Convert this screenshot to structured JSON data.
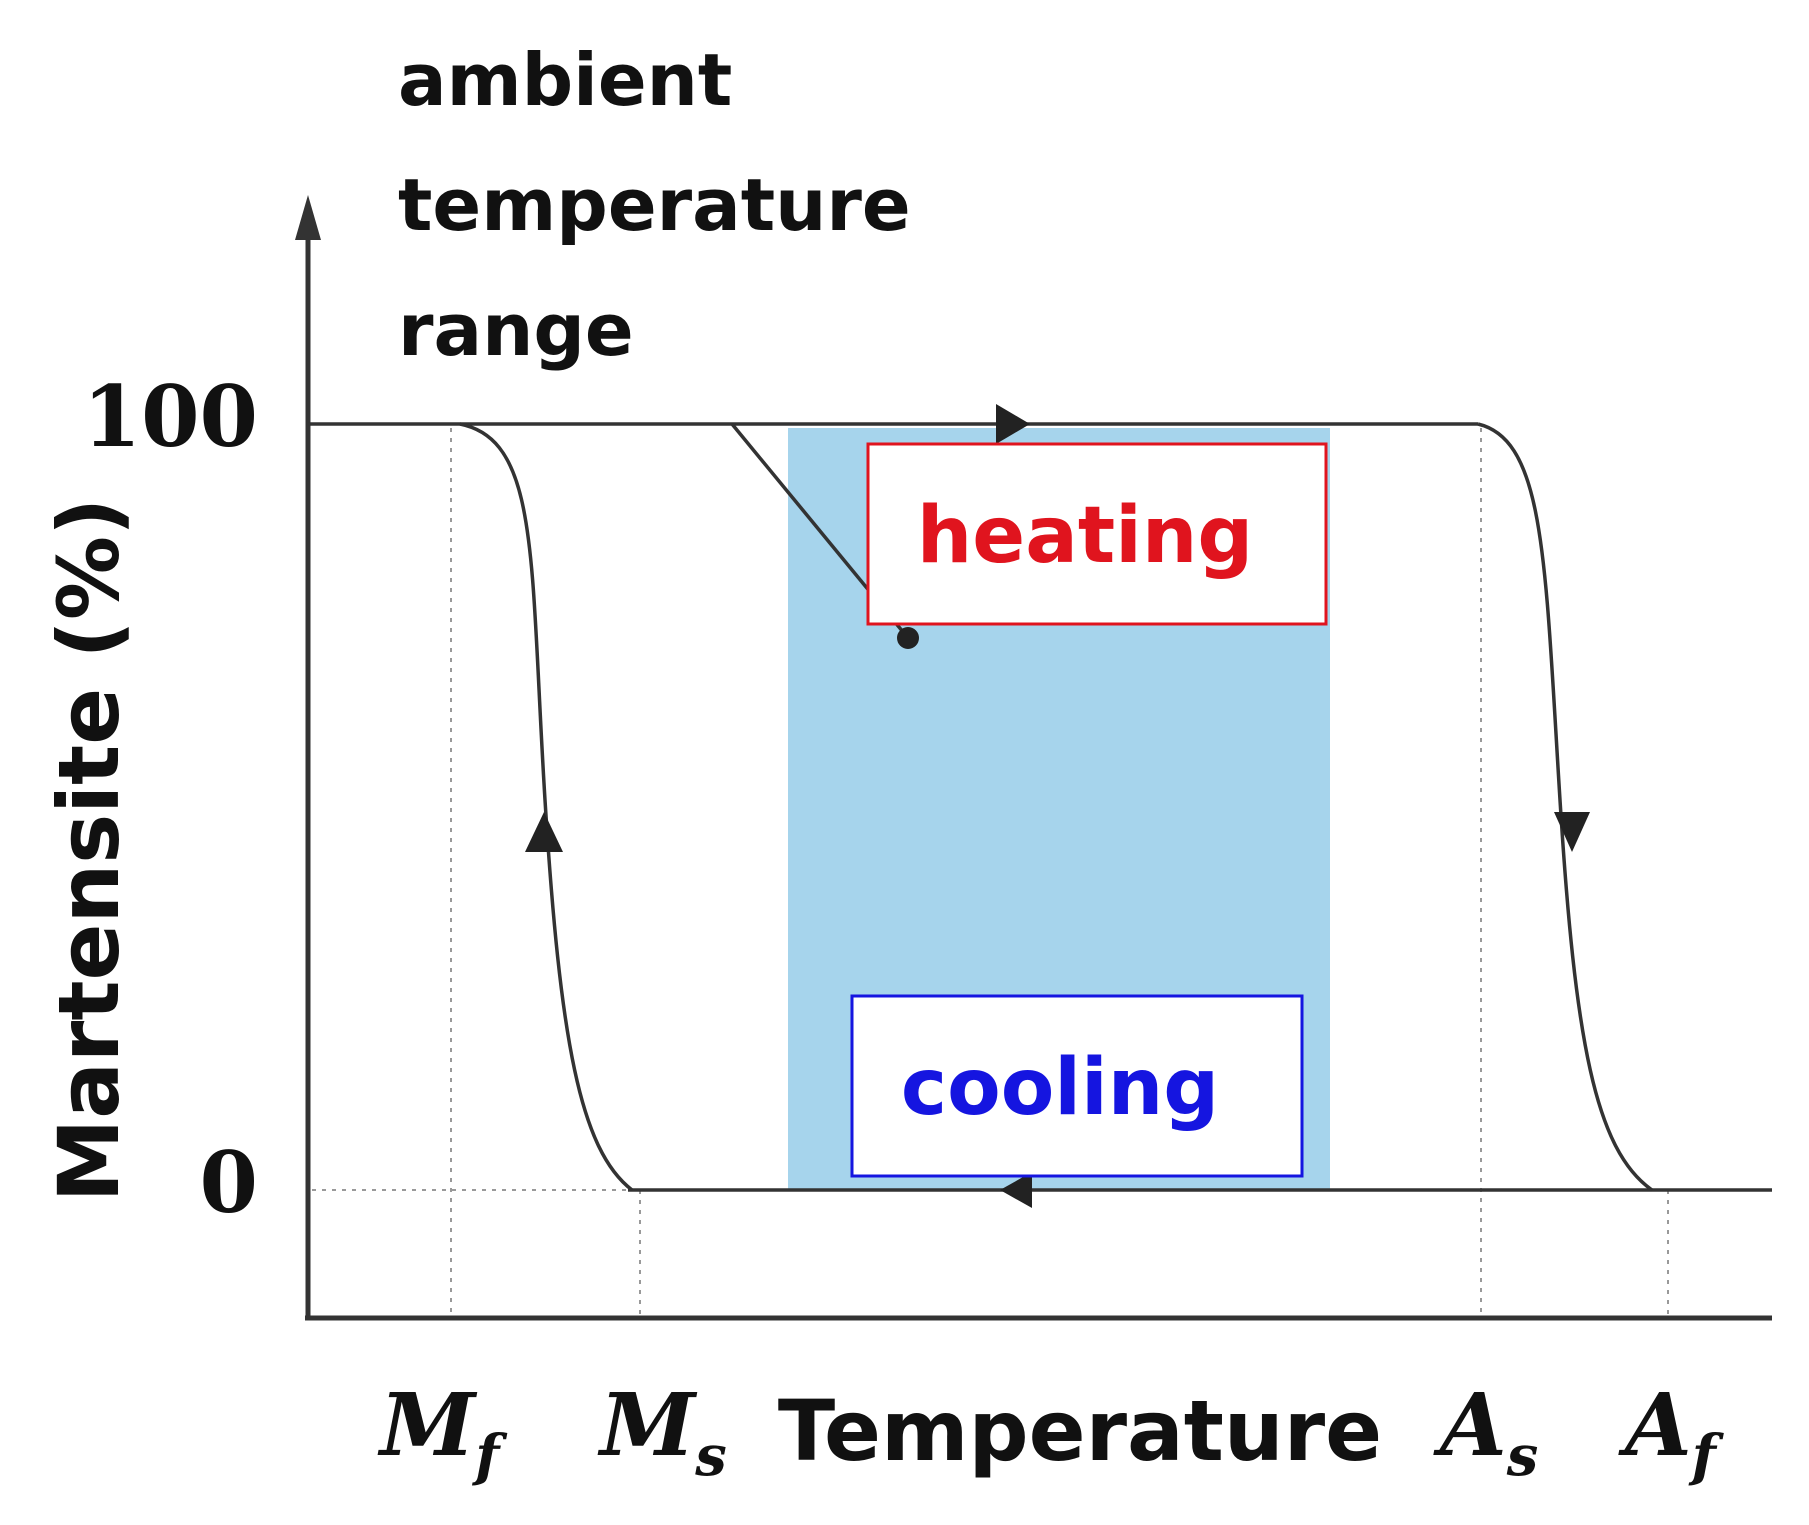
{
  "ambient_label": [
    "ambient",
    "temperature",
    "range"
  ],
  "y_axis": {
    "label": "Martensite (%)",
    "tick_top": "100",
    "tick_bottom": "0"
  },
  "x_axis": {
    "label": "Temperature",
    "markers": [
      {
        "id": "mf",
        "main": "M",
        "sub": "f"
      },
      {
        "id": "ms",
        "main": "M",
        "sub": "s"
      },
      {
        "id": "as",
        "main": "A",
        "sub": "s"
      },
      {
        "id": "af",
        "main": "A",
        "sub": "f"
      }
    ]
  },
  "boxes": {
    "heating": "heating",
    "cooling": "cooling"
  },
  "colors": {
    "band": "#a6d4ec",
    "heating": "#e0141e",
    "cooling": "#1515e0",
    "line": "#333333"
  }
}
